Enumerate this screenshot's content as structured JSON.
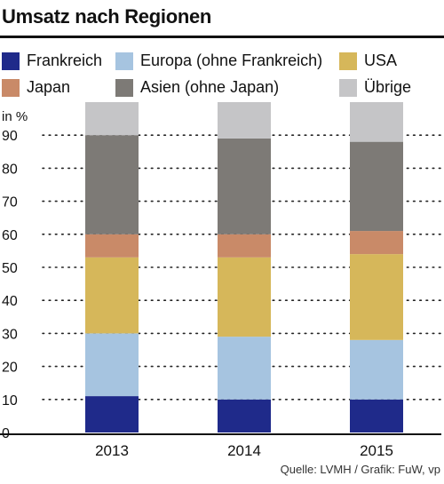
{
  "chart_data": {
    "type": "bar",
    "stacked": true,
    "title": "Umsatz nach Regionen",
    "ylabel": "in %",
    "ylim": [
      0,
      100
    ],
    "yticks": [
      0,
      10,
      20,
      30,
      40,
      50,
      60,
      70,
      80,
      90
    ],
    "grid": "dotted horizontal",
    "legend_position": "top",
    "categories": [
      "2013",
      "2014",
      "2015"
    ],
    "series": [
      {
        "name": "Frankreich",
        "color": "#1f2a8a",
        "values": [
          11,
          10,
          10
        ]
      },
      {
        "name": "Europa (ohne Frankreich)",
        "color": "#a6c4e0",
        "values": [
          19,
          19,
          18
        ]
      },
      {
        "name": "USA",
        "color": "#d6b75a",
        "values": [
          23,
          24,
          26
        ]
      },
      {
        "name": "Japan",
        "color": "#c98a68",
        "values": [
          7,
          7,
          7
        ]
      },
      {
        "name": "Asien (ohne Japan)",
        "color": "#7d7a76",
        "values": [
          30,
          29,
          27
        ]
      },
      {
        "name": "Übrige",
        "color": "#c5c5c7",
        "values": [
          10,
          11,
          12
        ]
      }
    ]
  },
  "footer": "Quelle: LVMH / Grafik: FuW, vp"
}
